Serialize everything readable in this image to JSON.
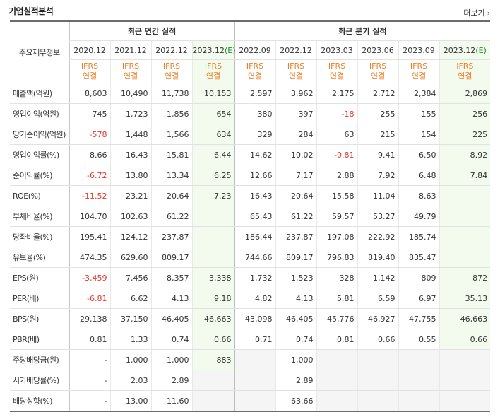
{
  "section_title": "기업실적분석",
  "more_link": "더보기",
  "more_icon": "chevron-right-icon",
  "header": {
    "row_label": "주요재무정보",
    "annual_group": "최근 연간 실적",
    "quarter_group": "최근 분기 실적",
    "periods": [
      {
        "label": "2020.12",
        "est": ""
      },
      {
        "label": "2021.12",
        "est": ""
      },
      {
        "label": "2022.12",
        "est": ""
      },
      {
        "label": "2023.12",
        "est": "(E)"
      },
      {
        "label": "2022.09",
        "est": ""
      },
      {
        "label": "2022.12",
        "est": ""
      },
      {
        "label": "2023.03",
        "est": ""
      },
      {
        "label": "2023.06",
        "est": ""
      },
      {
        "label": "2023.09",
        "est": ""
      },
      {
        "label": "2023.12",
        "est": "(E)"
      }
    ],
    "ifrs_line1": "IFRS",
    "ifrs_line2": "연결"
  },
  "colors": {
    "accent_orange": "#ef7e26",
    "negative_red": "#e23a2b",
    "estimate_bg": "#f2fbee",
    "estimate_green": "#1f8f2f"
  },
  "rows": [
    {
      "label": "매출액(억원)",
      "values": [
        "8,603",
        "10,490",
        "11,738",
        "10,153",
        "2,597",
        "3,962",
        "2,175",
        "2,712",
        "2,384",
        "2,869"
      ]
    },
    {
      "label": "영업이익(억원)",
      "values": [
        "745",
        "1,723",
        "1,856",
        "654",
        "380",
        "397",
        "-18",
        "255",
        "155",
        "256"
      ]
    },
    {
      "label": "당기순이익(억원)",
      "values": [
        "-578",
        "1,448",
        "1,566",
        "634",
        "329",
        "284",
        "63",
        "215",
        "154",
        "225"
      ]
    },
    {
      "label": "영업이익률(%)",
      "values": [
        "8.66",
        "16.43",
        "15.81",
        "6.44",
        "14.62",
        "10.02",
        "-0.81",
        "9.41",
        "6.50",
        "8.92"
      ]
    },
    {
      "label": "순이익률(%)",
      "values": [
        "-6.72",
        "13.80",
        "13.34",
        "6.25",
        "12.66",
        "7.17",
        "2.88",
        "7.92",
        "6.48",
        "7.84"
      ]
    },
    {
      "label": "ROE(%)",
      "values": [
        "-11.52",
        "23.21",
        "20.64",
        "7.23",
        "16.43",
        "20.64",
        "15.58",
        "11.04",
        "8.63",
        ""
      ]
    },
    {
      "label": "부채비율(%)",
      "values": [
        "104.70",
        "102.63",
        "61.22",
        "",
        "65.43",
        "61.22",
        "59.57",
        "53.27",
        "49.79",
        ""
      ]
    },
    {
      "label": "당좌비율(%)",
      "values": [
        "195.41",
        "124.12",
        "237.87",
        "",
        "186.44",
        "237.87",
        "197.08",
        "222.92",
        "185.74",
        ""
      ]
    },
    {
      "label": "유보율(%)",
      "values": [
        "474.35",
        "629.60",
        "809.17",
        "",
        "744.66",
        "809.17",
        "796.83",
        "819.40",
        "835.47",
        ""
      ]
    },
    {
      "label": "EPS(원)",
      "values": [
        "-3,459",
        "7,456",
        "8,357",
        "3,338",
        "1,732",
        "1,523",
        "328",
        "1,142",
        "809",
        "872"
      ]
    },
    {
      "label": "PER(배)",
      "values": [
        "-6.81",
        "6.62",
        "4.13",
        "9.18",
        "4.82",
        "4.13",
        "5.81",
        "6.59",
        "6.97",
        "35.13"
      ]
    },
    {
      "label": "BPS(원)",
      "values": [
        "29,138",
        "37,150",
        "46,405",
        "46,663",
        "43,098",
        "46,405",
        "45,776",
        "46,927",
        "47,755",
        "46,663"
      ]
    },
    {
      "label": "PBR(배)",
      "values": [
        "0.81",
        "1.33",
        "0.74",
        "0.66",
        "0.71",
        "0.74",
        "0.81",
        "0.66",
        "0.55",
        "0.66"
      ]
    },
    {
      "label": "주당배당금(원)",
      "values": [
        "-",
        "1,000",
        "1,000",
        "883",
        "",
        "1,000",
        "",
        "",
        "",
        ""
      ]
    },
    {
      "label": "시가배당률(%)",
      "values": [
        "-",
        "2.03",
        "2.89",
        "",
        "",
        "2.89",
        "",
        "",
        "",
        ""
      ]
    },
    {
      "label": "배당성향(%)",
      "values": [
        "-",
        "13.00",
        "11.60",
        "",
        "",
        "63.66",
        "",
        "",
        "",
        ""
      ]
    }
  ]
}
